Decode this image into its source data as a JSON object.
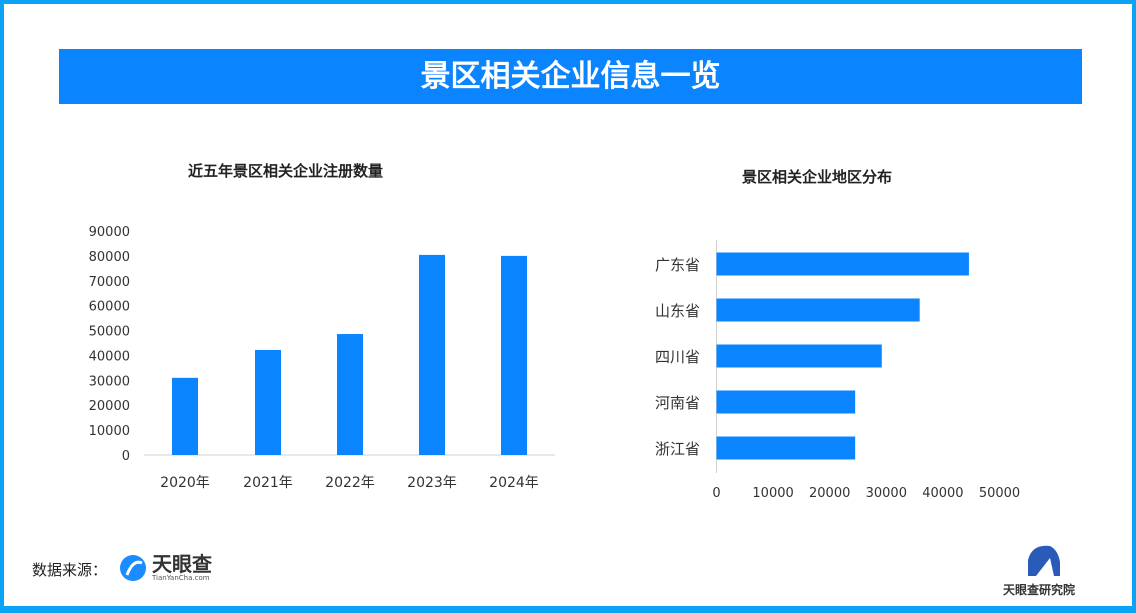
{
  "header": {
    "title": "景区相关企业信息一览"
  },
  "colors": {
    "bar": "#0a84ff",
    "banner": "#0a84ff",
    "border": "#0aa3f5"
  },
  "chart_data": [
    {
      "type": "bar",
      "title": "近五年景区相关企业注册数量",
      "categories": [
        "2020年",
        "2021年",
        "2022年",
        "2023年",
        "2024年"
      ],
      "values": [
        31000,
        42200,
        48600,
        80400,
        80000
      ],
      "ylim": [
        0,
        90000
      ],
      "yticks": [
        "0",
        "10000",
        "20000",
        "30000",
        "40000",
        "50000",
        "60000",
        "70000",
        "80000",
        "90000"
      ],
      "grid": false
    },
    {
      "type": "bar",
      "orientation": "horizontal",
      "title": "景区相关企业地区分布",
      "categories": [
        "广东省",
        "山东省",
        "四川省",
        "河南省",
        "浙江省"
      ],
      "values": [
        44600,
        35900,
        29200,
        24500,
        24500
      ],
      "xlim": [
        0,
        50000
      ],
      "xticks": [
        "0",
        "10000",
        "20000",
        "30000",
        "40000",
        "50000"
      ],
      "grid": false
    }
  ],
  "footer": {
    "source_label": "数据来源：",
    "logo_name": "天眼查",
    "logo_url_text": "TianYanCha.com",
    "institute": "天眼查研究院",
    "logo_icon": "tianyancha-logo-icon",
    "institute_icon": "institute-logo-icon"
  }
}
